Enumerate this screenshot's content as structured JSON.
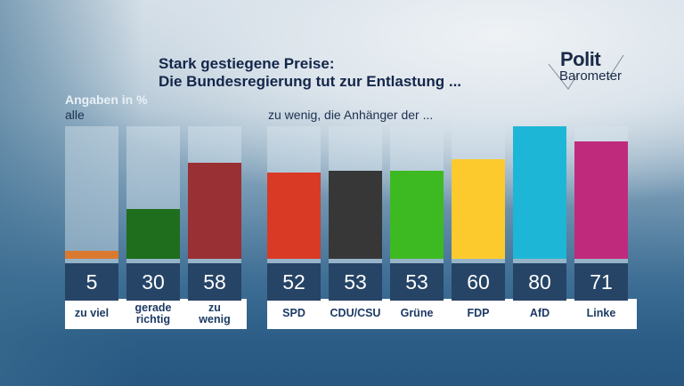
{
  "title": {
    "line1": "Stark gestiegene Preise:",
    "line2": "Die Bundesregierung tut zur Entlastung ..."
  },
  "logo": {
    "part1": "Polit",
    "part2": "Barometer"
  },
  "units_label": "Angaben in %",
  "colors": {
    "track": "#c8dbe6",
    "value_box": "#264466",
    "label_text": "#1c3a64"
  },
  "chart_data": [
    {
      "type": "bar",
      "title": "alle",
      "categories": [
        "zu viel",
        "gerade richtig",
        "zu wenig"
      ],
      "category_lines": [
        [
          "zu viel"
        ],
        [
          "gerade",
          "richtig"
        ],
        [
          "zu",
          "wenig"
        ]
      ],
      "values": [
        5,
        30,
        58
      ],
      "value_labels": [
        "5",
        "30",
        "58"
      ],
      "colors": [
        "#d97a30",
        "#1e6e1e",
        "#993033"
      ],
      "ylim": [
        0,
        80
      ],
      "unit": "%",
      "grid": false
    },
    {
      "type": "bar",
      "title": "zu wenig, die Anhänger der ...",
      "categories": [
        "SPD",
        "CDU/CSU",
        "Grüne",
        "FDP",
        "AfD",
        "Linke"
      ],
      "category_lines": [
        [
          "SPD"
        ],
        [
          "CDU/CSU"
        ],
        [
          "Grüne"
        ],
        [
          "FDP"
        ],
        [
          "AfD"
        ],
        [
          "Linke"
        ]
      ],
      "values": [
        52,
        53,
        53,
        60,
        80,
        71
      ],
      "value_labels": [
        "52",
        "53",
        "53",
        "60",
        "80",
        "71"
      ],
      "colors": [
        "#d93a26",
        "#373737",
        "#3dba21",
        "#fdca2d",
        "#1eb6d6",
        "#c02a7c"
      ],
      "ylim": [
        0,
        80
      ],
      "unit": "%",
      "grid": false
    }
  ]
}
